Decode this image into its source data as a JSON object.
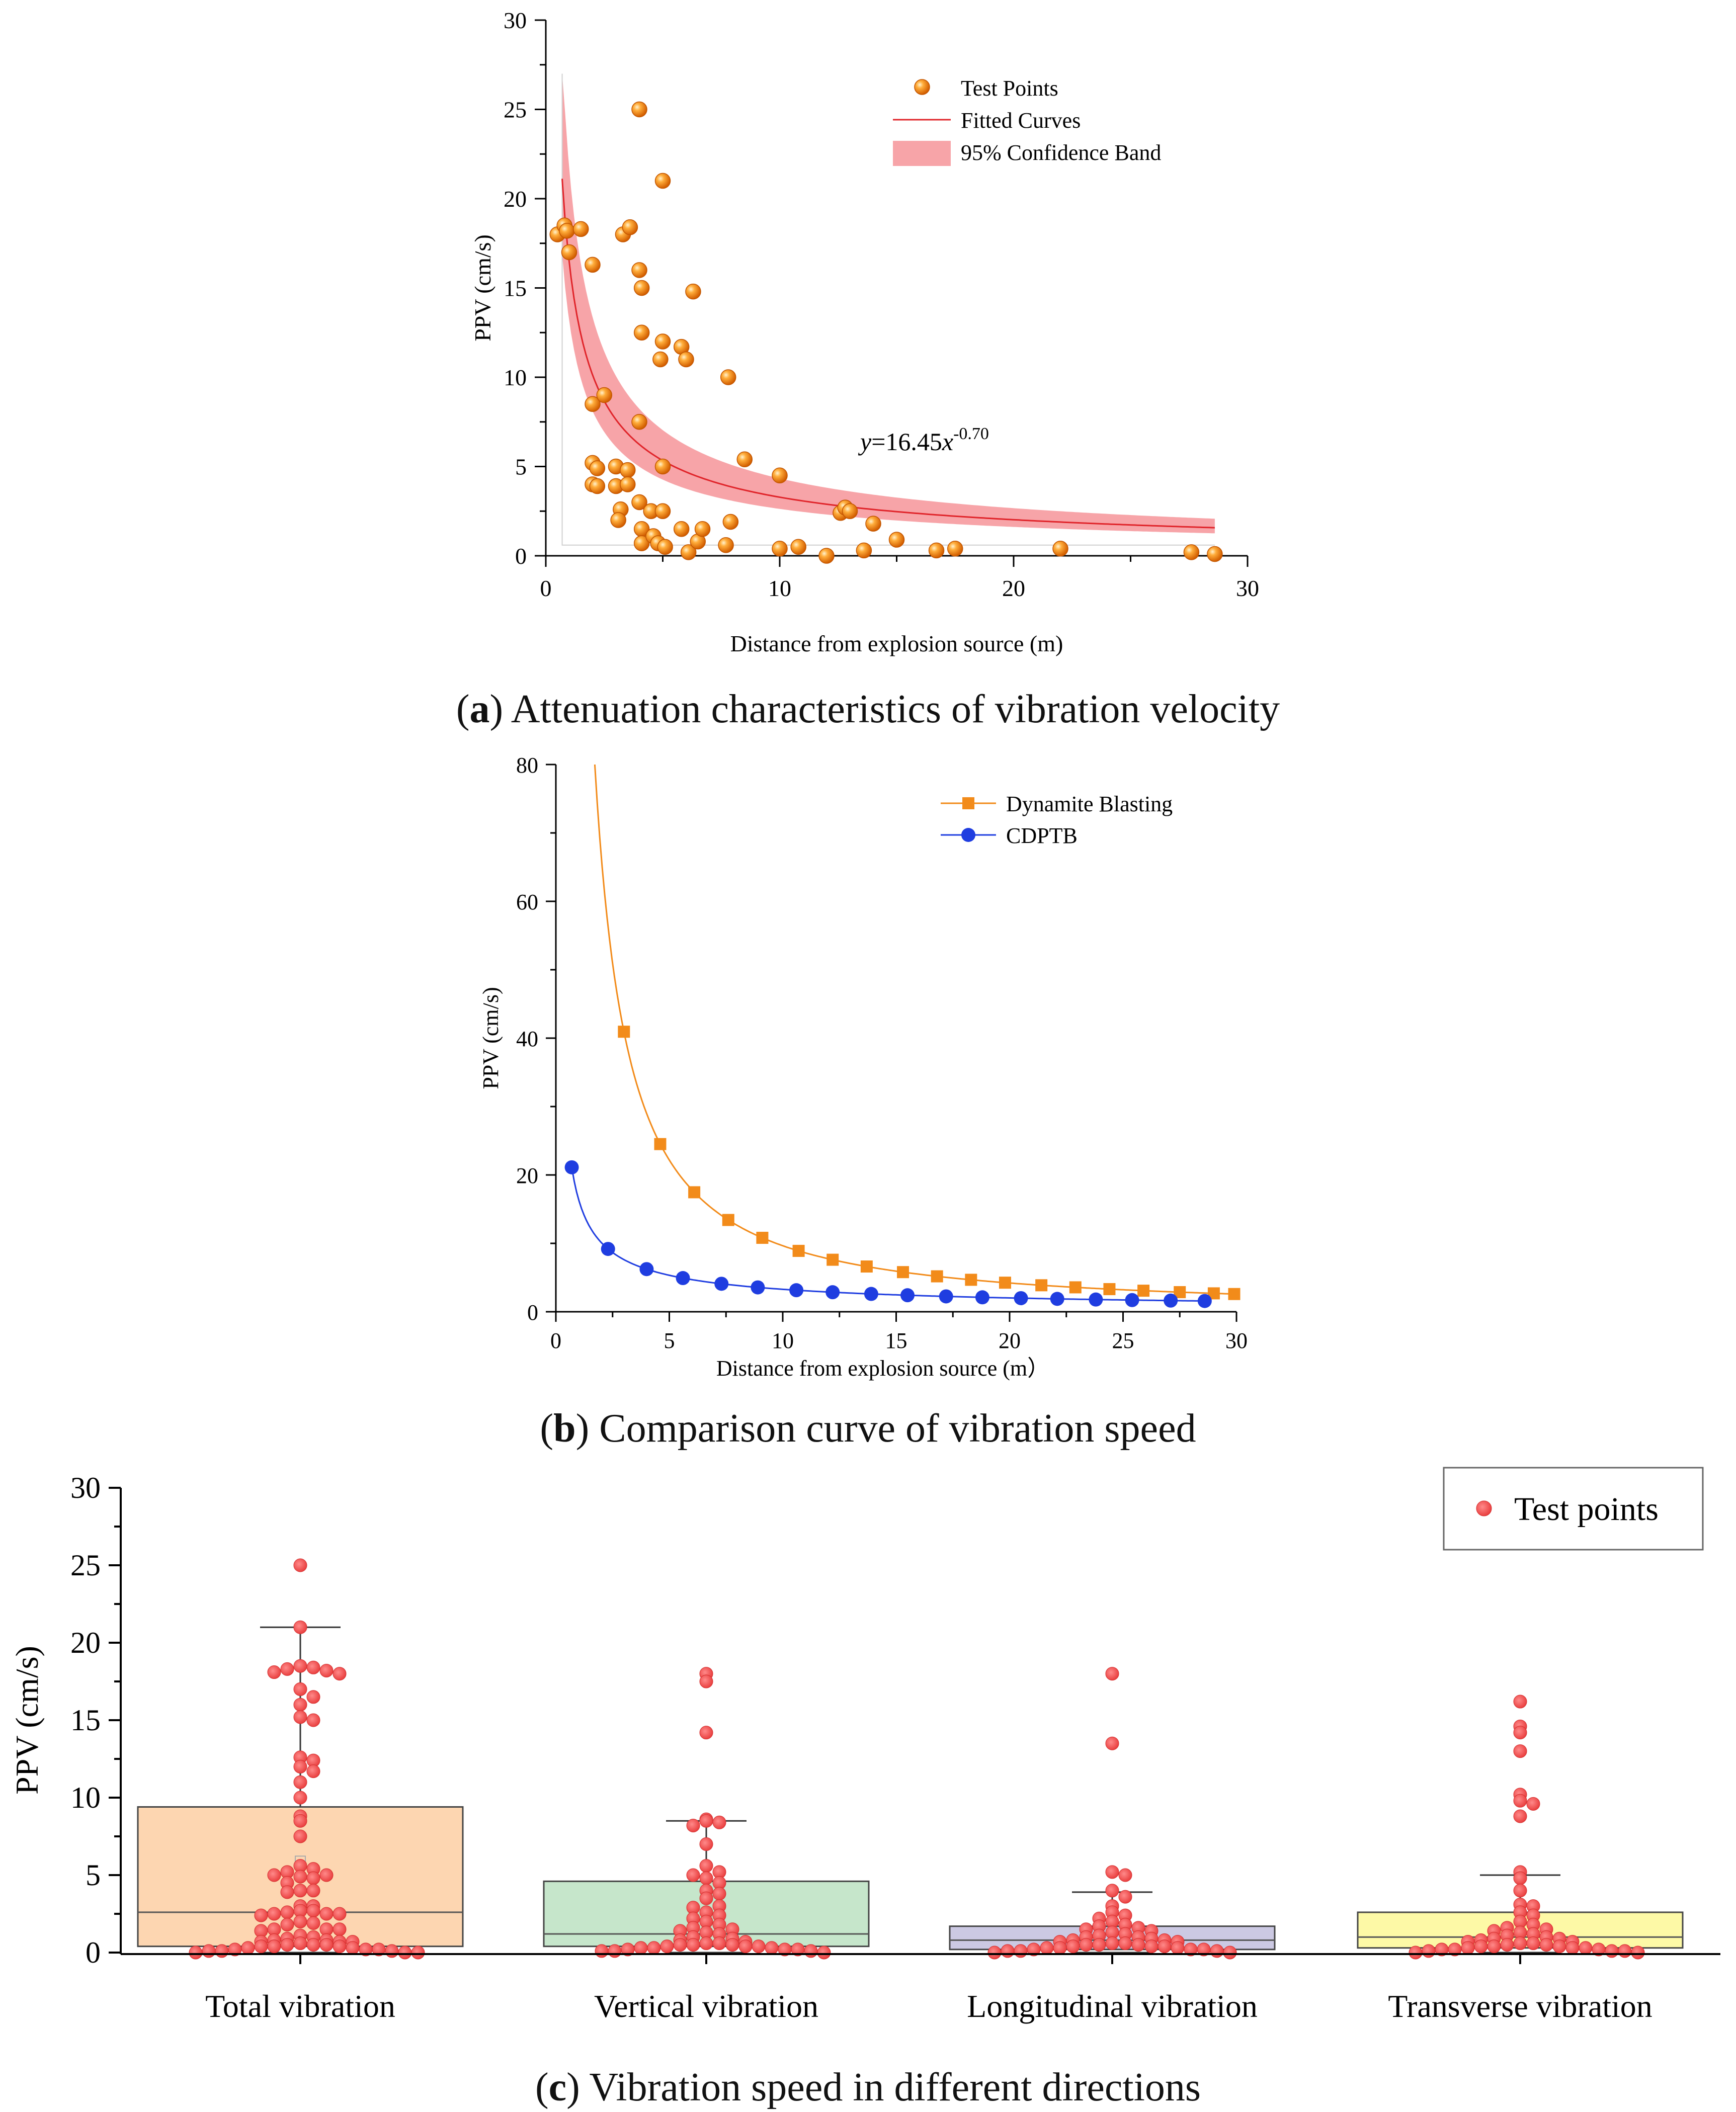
{
  "chart_data": [
    {
      "id": "a",
      "type": "scatter",
      "caption": {
        "letter": "a",
        "text": "Attenuation characteristics of vibration velocity"
      },
      "xlabel": "Distance from explosion source (m)",
      "ylabel": "PPV (cm/s)",
      "xlim": [
        0,
        30
      ],
      "ylim": [
        0,
        30
      ],
      "xticks": [
        0,
        10,
        20,
        30
      ],
      "yticks": [
        0,
        5,
        10,
        15,
        20,
        25,
        30
      ],
      "legend": {
        "position": "top-right",
        "items": [
          "Test Points",
          "Fitted Curves",
          "95% Confidence Band"
        ]
      },
      "annotation": {
        "prefix": "y",
        "middle": "=16.45",
        "var": "x",
        "exponent": "-0.70"
      },
      "fit": {
        "a": 16.45,
        "b": -0.7,
        "x_start": 0.7,
        "x_end": 28.6
      },
      "band": {
        "lower_factor": 0.8,
        "upper_factor": 1.32,
        "x_start": 0.7,
        "x_end": 28.6
      },
      "points": [
        [
          0.5,
          18.0
        ],
        [
          0.8,
          18.5
        ],
        [
          0.9,
          18.2
        ],
        [
          1.0,
          17.0
        ],
        [
          1.5,
          18.3
        ],
        [
          2.0,
          16.3
        ],
        [
          2.0,
          8.5
        ],
        [
          2.5,
          9.0
        ],
        [
          2.0,
          5.2
        ],
        [
          2.2,
          4.9
        ],
        [
          2.0,
          4.0
        ],
        [
          2.2,
          3.9
        ],
        [
          3.0,
          5.0
        ],
        [
          3.0,
          3.9
        ],
        [
          3.2,
          2.6
        ],
        [
          3.1,
          2.0
        ],
        [
          3.5,
          4.8
        ],
        [
          3.5,
          4.0
        ],
        [
          3.3,
          18.0
        ],
        [
          3.6,
          18.4
        ],
        [
          4.0,
          25.0
        ],
        [
          4.0,
          16.0
        ],
        [
          4.1,
          15.0
        ],
        [
          4.1,
          12.5
        ],
        [
          4.0,
          7.5
        ],
        [
          4.0,
          3.0
        ],
        [
          4.1,
          1.5
        ],
        [
          4.1,
          0.7
        ],
        [
          4.5,
          2.5
        ],
        [
          4.6,
          1.1
        ],
        [
          4.8,
          0.7
        ],
        [
          5.0,
          2.5
        ],
        [
          5.1,
          0.5
        ],
        [
          5.0,
          12.0
        ],
        [
          4.9,
          11.0
        ],
        [
          5.0,
          5.0
        ],
        [
          5.0,
          21.0
        ],
        [
          5.8,
          11.7
        ],
        [
          6.0,
          11.0
        ],
        [
          6.3,
          14.8
        ],
        [
          5.8,
          1.5
        ],
        [
          6.1,
          0.2
        ],
        [
          6.5,
          0.8
        ],
        [
          6.7,
          1.5
        ],
        [
          7.8,
          10.0
        ],
        [
          7.9,
          1.9
        ],
        [
          7.7,
          0.6
        ],
        [
          8.5,
          5.4
        ],
        [
          10.0,
          4.5
        ],
        [
          10.0,
          0.4
        ],
        [
          10.8,
          0.5
        ],
        [
          12.0,
          0.0
        ],
        [
          12.6,
          2.4
        ],
        [
          12.8,
          2.7
        ],
        [
          13.0,
          2.5
        ],
        [
          13.6,
          0.3
        ],
        [
          14.0,
          1.8
        ],
        [
          15.0,
          0.9
        ],
        [
          16.7,
          0.3
        ],
        [
          17.5,
          0.4
        ],
        [
          22.0,
          0.4
        ],
        [
          27.6,
          0.2
        ],
        [
          28.6,
          0.1
        ]
      ]
    },
    {
      "id": "b",
      "type": "line",
      "caption": {
        "letter": "b",
        "text": "Comparison curve of vibration speed"
      },
      "xlabel": "Distance from explosion source (m）",
      "ylabel": "PPV (cm/s)",
      "xlim": [
        0,
        30
      ],
      "ylim": [
        0,
        80
      ],
      "xticks": [
        0,
        5,
        10,
        15,
        20,
        25,
        30
      ],
      "yticks": [
        0,
        20,
        40,
        60,
        80
      ],
      "legend": {
        "position": "top-right"
      },
      "series": [
        {
          "name": "Dynamite Blasting",
          "marker": "square",
          "color": "#f28b1a",
          "a": 153,
          "b": -1.2,
          "x": [
            3.0,
            4.6,
            6.1,
            7.6,
            9.1,
            10.7,
            12.2,
            13.7,
            15.3,
            16.8,
            18.3,
            19.8,
            21.4,
            22.9,
            24.4,
            25.9,
            27.5,
            29.0,
            29.9
          ]
        },
        {
          "name": "CDPTB",
          "marker": "circle",
          "color": "#1f3de0",
          "a": 16.45,
          "b": -0.7,
          "x": [
            0.7,
            2.3,
            4.0,
            5.6,
            7.3,
            8.9,
            10.6,
            12.2,
            13.9,
            15.5,
            17.2,
            18.8,
            20.5,
            22.1,
            23.8,
            25.4,
            27.1,
            28.6
          ]
        }
      ]
    },
    {
      "id": "c",
      "type": "box",
      "caption": {
        "letter": "c",
        "text": "Vibration speed in different directions"
      },
      "ylabel": "PPV (cm/s)",
      "ylim": [
        0,
        30
      ],
      "yticks": [
        0,
        5,
        10,
        15,
        20,
        25,
        30
      ],
      "legend": {
        "position": "top-right",
        "label": "Test points"
      },
      "groups": [
        {
          "name": "Total vibration",
          "fill": "#fdd6b1",
          "q1": 0.4,
          "median": 2.6,
          "q3": 9.4,
          "whisker_low": 0.0,
          "whisker_high": 21.0,
          "mean": 5.9,
          "points": [
            25.0,
            21.0,
            18.5,
            18.4,
            18.3,
            18.2,
            18.1,
            18.0,
            17.0,
            16.5,
            16.0,
            15.2,
            15.0,
            12.6,
            12.4,
            12.0,
            11.7,
            11.0,
            10.0,
            8.8,
            8.5,
            7.5,
            5.6,
            5.4,
            5.2,
            5.0,
            5.0,
            4.9,
            4.8,
            4.5,
            4.0,
            4.0,
            3.9,
            3.0,
            3.0,
            2.7,
            2.7,
            2.6,
            2.5,
            2.5,
            2.5,
            2.4,
            2.0,
            1.9,
            1.8,
            1.5,
            1.5,
            1.5,
            1.4,
            1.1,
            1.0,
            0.9,
            0.8,
            0.8,
            0.7,
            0.7,
            0.7,
            0.6,
            0.5,
            0.5,
            0.5,
            0.4,
            0.4,
            0.4,
            0.3,
            0.3,
            0.2,
            0.2,
            0.2,
            0.1,
            0.1,
            0.1,
            0.0,
            0.0,
            0.0
          ]
        },
        {
          "name": "Vertical vibration",
          "fill": "#c6e6cb",
          "q1": 0.4,
          "median": 1.2,
          "q3": 4.6,
          "whisker_low": 0.0,
          "whisker_high": 8.5,
          "points": [
            18.0,
            17.5,
            14.2,
            8.6,
            8.5,
            8.4,
            8.2,
            7.0,
            5.6,
            5.2,
            5.0,
            4.8,
            4.5,
            4.0,
            3.8,
            3.5,
            3.0,
            2.9,
            2.6,
            2.4,
            2.2,
            2.0,
            1.8,
            1.6,
            1.5,
            1.4,
            1.3,
            1.2,
            1.0,
            0.9,
            0.8,
            0.7,
            0.6,
            0.6,
            0.5,
            0.5,
            0.5,
            0.4,
            0.4,
            0.4,
            0.3,
            0.3,
            0.3,
            0.2,
            0.2,
            0.2,
            0.1,
            0.1,
            0.1,
            0.0
          ]
        },
        {
          "name": "Longitudinal vibration",
          "fill": "#ccc9e3",
          "q1": 0.2,
          "median": 0.8,
          "q3": 1.7,
          "whisker_low": 0.0,
          "whisker_high": 3.9,
          "points": [
            18.0,
            13.5,
            5.2,
            5.0,
            4.0,
            3.6,
            3.0,
            2.6,
            2.4,
            2.2,
            2.0,
            1.8,
            1.7,
            1.6,
            1.5,
            1.4,
            1.3,
            1.2,
            1.1,
            1.0,
            1.0,
            0.9,
            0.8,
            0.8,
            0.7,
            0.7,
            0.6,
            0.6,
            0.5,
            0.5,
            0.5,
            0.4,
            0.4,
            0.4,
            0.3,
            0.3,
            0.3,
            0.2,
            0.2,
            0.2,
            0.1,
            0.1,
            0.1,
            0.0,
            0.0
          ]
        },
        {
          "name": "Transverse vibration",
          "fill": "#fdf9a6",
          "q1": 0.3,
          "median": 1.0,
          "q3": 2.6,
          "whisker_low": 0.0,
          "whisker_high": 5.0,
          "points": [
            16.2,
            14.6,
            14.2,
            13.0,
            10.2,
            9.8,
            9.6,
            8.8,
            5.2,
            4.8,
            4.0,
            3.1,
            3.0,
            2.6,
            2.4,
            2.0,
            1.8,
            1.6,
            1.5,
            1.4,
            1.3,
            1.2,
            1.1,
            1.0,
            0.9,
            0.9,
            0.8,
            0.7,
            0.7,
            0.6,
            0.6,
            0.5,
            0.5,
            0.4,
            0.4,
            0.4,
            0.3,
            0.3,
            0.3,
            0.2,
            0.2,
            0.2,
            0.1,
            0.1,
            0.1,
            0.0,
            0.0
          ]
        }
      ]
    }
  ]
}
